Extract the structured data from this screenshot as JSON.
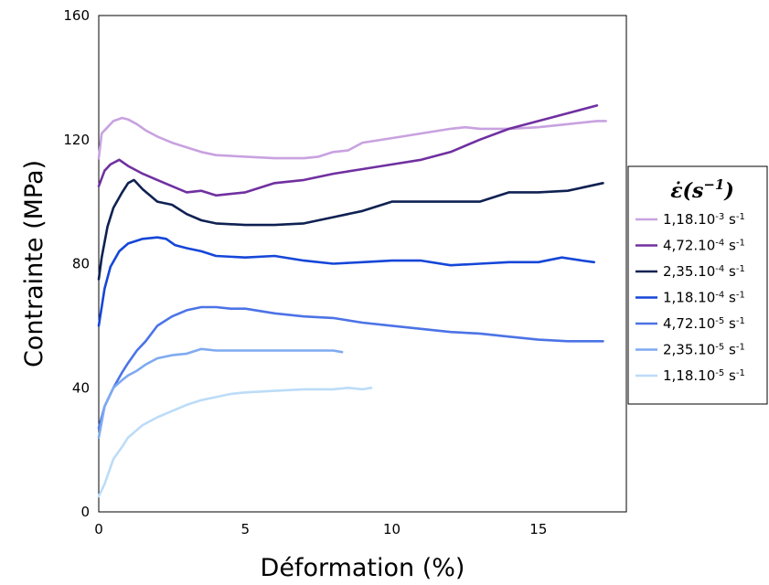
{
  "chart_data": {
    "type": "line",
    "title": "",
    "xlabel": "Déformation (%)",
    "ylabel": "Contrainte (MPa)",
    "xlim": [
      0,
      18
    ],
    "ylim": [
      0,
      160
    ],
    "xticks": [
      0,
      5,
      10,
      15
    ],
    "yticks": [
      0,
      40,
      80,
      120,
      160
    ],
    "grid": false,
    "legend": {
      "placement": "right",
      "title_main": "ε̇(s",
      "title_sup": "−1",
      "title_end": ")"
    },
    "series": [
      {
        "name": "1,18.10-3 s-1",
        "label_base": "1,18.10",
        "label_exp": "-3",
        "label_unit": " s",
        "label_unit_exp": "-1",
        "color": "#c8a2e0",
        "x": [
          0,
          0.1,
          0.3,
          0.5,
          0.8,
          1.0,
          1.3,
          1.6,
          2.0,
          2.5,
          3.0,
          3.5,
          4.0,
          5.0,
          6.0,
          7.0,
          7.5,
          8.0,
          8.5,
          9.0,
          10.0,
          11.0,
          12.0,
          12.5,
          13.0,
          14.0,
          15.0,
          16.0,
          17.0,
          17.3
        ],
        "y": [
          114,
          122,
          124,
          126,
          127,
          126.5,
          125,
          123,
          121,
          119,
          117.5,
          116,
          115,
          114.5,
          114,
          114,
          114.5,
          116,
          116.5,
          119,
          120.5,
          122,
          123.5,
          124,
          123.5,
          123.5,
          124,
          125,
          126,
          126
        ]
      },
      {
        "name": "4,72.10-4 s-1",
        "label_base": "4,72.10",
        "label_exp": "-4",
        "label_unit": " s",
        "label_unit_exp": "-1",
        "color": "#7030a0",
        "x": [
          0,
          0.2,
          0.4,
          0.7,
          1.0,
          1.5,
          2.0,
          2.5,
          3.0,
          3.5,
          4.0,
          5.0,
          6.0,
          7.0,
          8.0,
          9.0,
          10.0,
          11.0,
          12.0,
          13.0,
          14.0,
          15.0,
          16.0,
          17.0
        ],
        "y": [
          105,
          110,
          112,
          113.5,
          111.5,
          109,
          107,
          105,
          103,
          103.5,
          102,
          103,
          106,
          107,
          109,
          110.5,
          112,
          113.5,
          116,
          120,
          123.5,
          126,
          128.5,
          131
        ]
      },
      {
        "name": "2,35.10-4 s-1",
        "label_base": "2,35.10",
        "label_exp": "-4",
        "label_unit": " s",
        "label_unit_exp": "-1",
        "color": "#0f2152",
        "x": [
          0,
          0.1,
          0.3,
          0.5,
          0.8,
          1.0,
          1.2,
          1.5,
          2.0,
          2.5,
          3.0,
          3.5,
          4.0,
          5.0,
          6.0,
          7.0,
          8.0,
          9.0,
          10.0,
          11.0,
          12.0,
          13.0,
          14.0,
          15.0,
          16.0,
          17.2
        ],
        "y": [
          75,
          82,
          92,
          98,
          103,
          106,
          107,
          104,
          100,
          99,
          96,
          94,
          93,
          92.5,
          92.5,
          93,
          95,
          97,
          100,
          100,
          100,
          100,
          103,
          103,
          103.5,
          106
        ]
      },
      {
        "name": "1,18.10-4 s-1",
        "label_base": "1,18.10",
        "label_exp": "-4",
        "label_unit": " s",
        "label_unit_exp": "-1",
        "color": "#1546d8",
        "x": [
          0,
          0.2,
          0.4,
          0.7,
          1.0,
          1.5,
          2.0,
          2.3,
          2.6,
          3.0,
          3.5,
          4.0,
          5.0,
          6.0,
          7.0,
          8.0,
          9.0,
          10.0,
          11.0,
          12.0,
          13.0,
          14.0,
          15.0,
          15.8,
          16.5,
          16.9
        ],
        "y": [
          60,
          72,
          79,
          84,
          86.5,
          88,
          88.5,
          88,
          86,
          85,
          84,
          82.5,
          82,
          82.5,
          81,
          80,
          80.5,
          81,
          81,
          79.5,
          80,
          80.5,
          80.5,
          82,
          81,
          80.5
        ]
      },
      {
        "name": "4,72.10-5 s-1",
        "label_base": "4,72.10",
        "label_exp": "-5",
        "label_unit": " s",
        "label_unit_exp": "-1",
        "color": "#4c73e6",
        "x": [
          0,
          0.2,
          0.5,
          0.8,
          1.0,
          1.3,
          1.6,
          2.0,
          2.5,
          3.0,
          3.5,
          4.0,
          4.5,
          5.0,
          6.0,
          7.0,
          8.0,
          9.0,
          10.0,
          11.0,
          12.0,
          13.0,
          14.0,
          15.0,
          16.0,
          17.2
        ],
        "y": [
          27,
          34,
          40,
          45,
          48,
          52,
          55,
          60,
          63,
          65,
          66,
          66,
          65.5,
          65.5,
          64,
          63,
          62.5,
          61,
          60,
          59,
          58,
          57.5,
          56.5,
          55.5,
          55,
          55
        ]
      },
      {
        "name": "2,35.10-5 s-1",
        "label_base": "2,35.10",
        "label_exp": "-5",
        "label_unit": " s",
        "label_unit_exp": "-1",
        "color": "#7eaaf0",
        "x": [
          0,
          0.2,
          0.5,
          0.8,
          1.0,
          1.3,
          1.6,
          2.0,
          2.5,
          3.0,
          3.5,
          4.0,
          5.0,
          6.0,
          7.0,
          8.0,
          8.3
        ],
        "y": [
          24,
          34,
          40,
          42.5,
          44,
          45.5,
          47.5,
          49.5,
          50.5,
          51,
          52.5,
          52,
          52,
          52,
          52,
          52,
          51.5
        ]
      },
      {
        "name": "1,18.10-5 s-1",
        "label_base": "1,18.10",
        "label_exp": "-5",
        "label_unit": " s",
        "label_unit_exp": "-1",
        "color": "#bcdcf8",
        "x": [
          0,
          0.2,
          0.5,
          0.8,
          1.0,
          1.5,
          2.0,
          2.5,
          3.0,
          3.5,
          4.0,
          4.5,
          5.0,
          6.0,
          7.0,
          8.0,
          8.5,
          9.0,
          9.3
        ],
        "y": [
          5,
          9,
          17,
          21,
          24,
          28,
          30.5,
          32.5,
          34.5,
          36,
          37,
          38,
          38.5,
          39,
          39.5,
          39.5,
          40,
          39.5,
          40
        ]
      }
    ]
  }
}
